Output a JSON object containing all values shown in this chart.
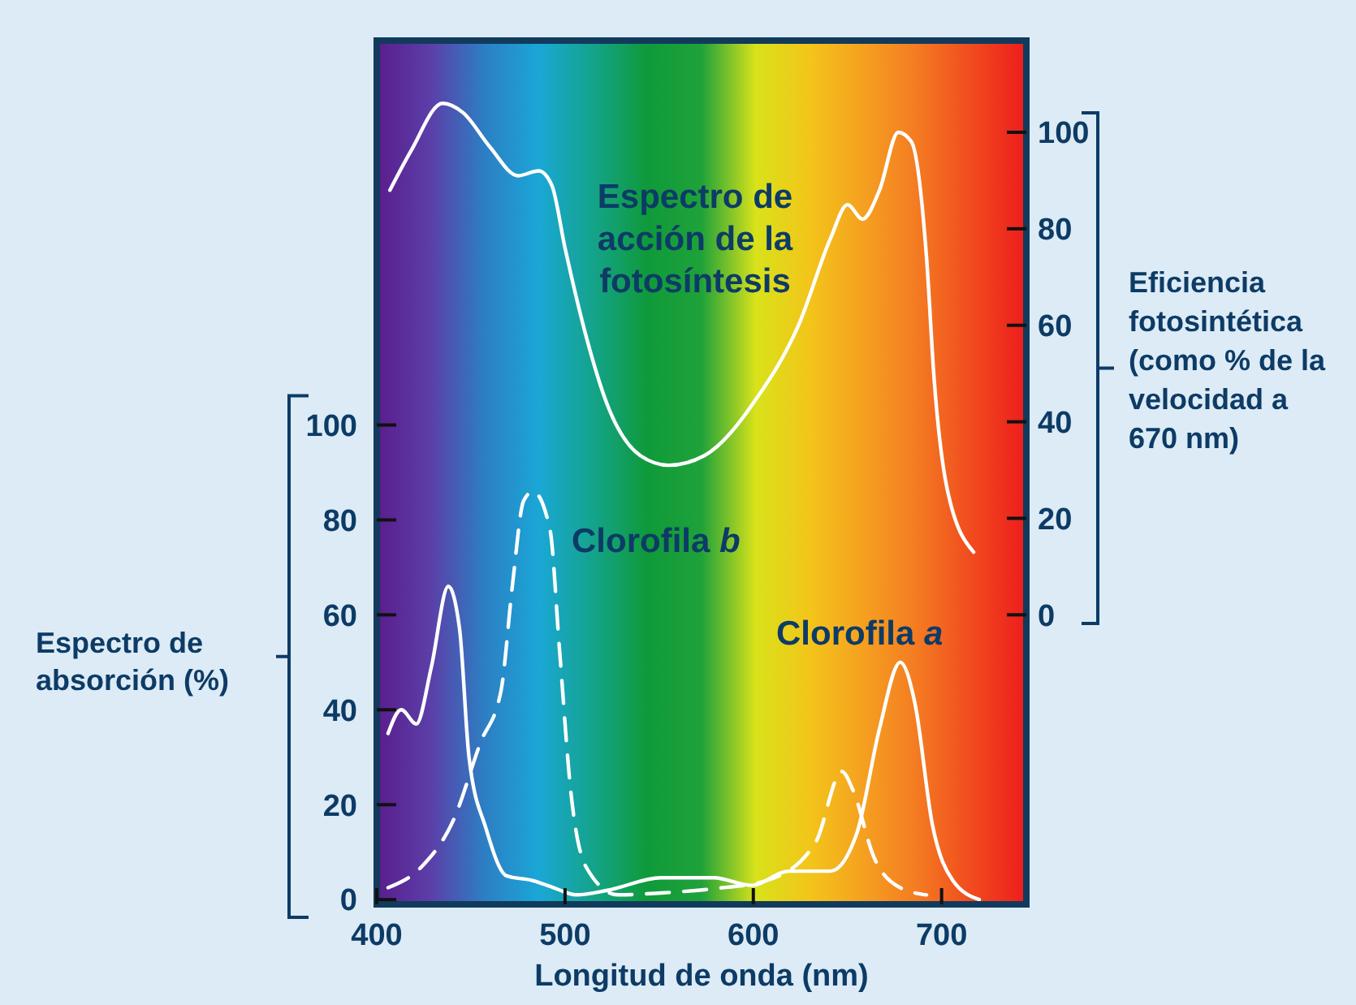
{
  "chart_data": {
    "type": "line",
    "xlabel": "Longitud de onda (nm)",
    "ylabel": "Espectro de absorción (%)",
    "y2label": "Eficiencia fotosintética (como % de la velocidad a 670 nm)",
    "xlim": [
      400,
      745
    ],
    "xticks": [
      400,
      500,
      600,
      700
    ],
    "ylim": [
      -1,
      181
    ],
    "yticks": [
      0,
      20,
      40,
      60,
      80,
      100
    ],
    "y2lim": [
      -60,
      119
    ],
    "y2ticks": [
      0,
      20,
      40,
      60,
      80,
      100
    ],
    "series": [
      {
        "name": "Espectro de acción de la fotosíntesis",
        "color": "#ffffff",
        "axis": "y2",
        "line_style": "solid",
        "x": [
          407,
          418,
          435,
          446,
          460,
          475,
          486,
          493,
          500,
          511,
          523,
          540,
          555,
          574,
          602,
          624,
          641,
          650,
          658,
          667,
          677,
          684,
          692,
          696,
          703,
          717
        ],
        "values": [
          88,
          96,
          106,
          104,
          97,
          91,
          92,
          89,
          76,
          58,
          43,
          33,
          31,
          33,
          45,
          60,
          78,
          85,
          82,
          88,
          100,
          98,
          74,
          49,
          26,
          13
        ]
      },
      {
        "name": "Clorofila b",
        "color": "#ffffff",
        "axis": "y",
        "line_style": "dashed",
        "x": [
          406,
          424,
          441,
          455,
          466,
          472,
          478,
          483,
          492,
          497,
          503,
          511,
          528,
          551,
          579,
          607,
          633,
          647,
          653,
          664,
          678,
          692
        ],
        "values": [
          2.5,
          7,
          17,
          33,
          44,
          66,
          84,
          86,
          78,
          53,
          23,
          7,
          1,
          1.4,
          2.3,
          4,
          12,
          27,
          23,
          9,
          2.5,
          1
        ]
      },
      {
        "name": "Clorofila a",
        "color": "#ffffff",
        "axis": "y",
        "line_style": "solid",
        "x": [
          406,
          413,
          421,
          429,
          438,
          444,
          449,
          458,
          469,
          483,
          494,
          506,
          523,
          551,
          579,
          599,
          619,
          641,
          655,
          667,
          678,
          686,
          695,
          706,
          720
        ],
        "values": [
          35,
          40,
          37,
          49,
          66,
          57,
          30,
          15,
          5,
          4,
          2.5,
          1,
          2,
          4.6,
          4.6,
          3,
          6,
          6,
          14,
          36,
          50,
          41,
          16,
          4,
          0
        ]
      }
    ]
  }
}
